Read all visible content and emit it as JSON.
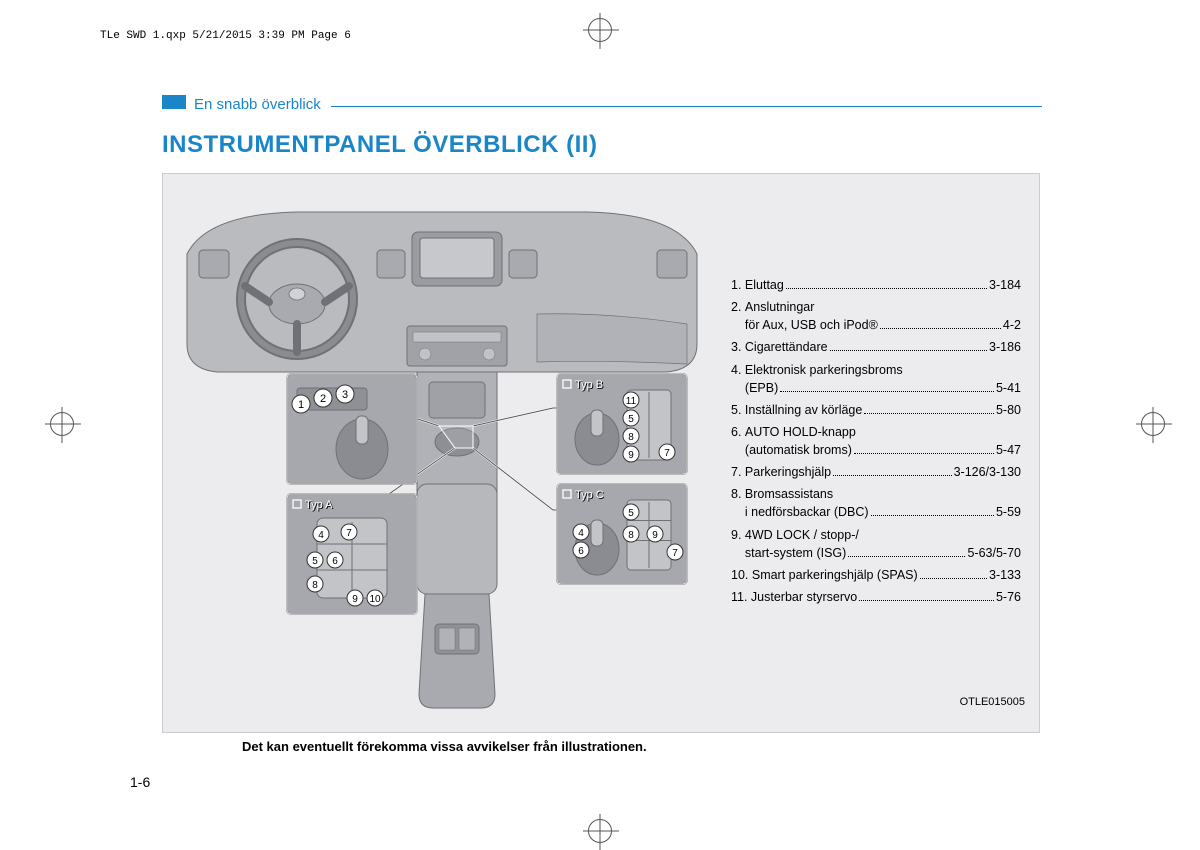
{
  "meta_header": "TLe SWD 1.qxp  5/21/2015  3:39 PM  Page 6",
  "section_label": "En snabb överblick",
  "main_title": "INSTRUMENTPANEL ÖVERBLICK (II)",
  "figure_code": "OTLE015005",
  "caption": "Det kan eventuellt förekomma vissa avvikelser från illustrationen.",
  "page_number": "1-6",
  "callouts": {
    "typA": "Typ A",
    "typB": "Typ B",
    "typC": "Typ C"
  },
  "colors": {
    "accent": "#1a86c8",
    "figure_bg": "#ececee",
    "callout_fill": "#ffffff",
    "callout_stroke": "#333333",
    "dashboard_fill": "#b9bbbf",
    "dashboard_stroke": "#6f7176"
  },
  "index": [
    {
      "n": "1.",
      "lines": [
        {
          "label": "Eluttag",
          "page": "3-184"
        }
      ]
    },
    {
      "n": "2.",
      "lines": [
        {
          "label": "Anslutningar",
          "page": ""
        },
        {
          "label": "för Aux, USB och iPod®",
          "page": "4-2"
        }
      ]
    },
    {
      "n": "3.",
      "lines": [
        {
          "label": "Cigarettändare",
          "page": "3-186"
        }
      ]
    },
    {
      "n": "4.",
      "lines": [
        {
          "label": "Elektronisk parkeringsbroms",
          "page": ""
        },
        {
          "label": "(EPB)",
          "page": "5-41"
        }
      ]
    },
    {
      "n": "5.",
      "lines": [
        {
          "label": "Inställning av körläge",
          "page": "5-80"
        }
      ]
    },
    {
      "n": "6.",
      "lines": [
        {
          "label": "AUTO HOLD-knapp",
          "page": ""
        },
        {
          "label": "(automatisk broms)",
          "page": "5-47"
        }
      ]
    },
    {
      "n": "7.",
      "lines": [
        {
          "label": "Parkeringshjälp",
          "page": "3-126/3-130"
        }
      ]
    },
    {
      "n": "8.",
      "lines": [
        {
          "label": "Bromsassistans",
          "page": ""
        },
        {
          "label": "i nedförsbackar (DBC)",
          "page": "5-59"
        }
      ]
    },
    {
      "n": "9.",
      "lines": [
        {
          "label": "4WD LOCK / stopp-/",
          "page": ""
        },
        {
          "label": "start-system (ISG)",
          "page": "5-63/5-70"
        }
      ]
    },
    {
      "n": "10.",
      "lines": [
        {
          "label": "Smart parkeringshjälp (SPAS)",
          "page": "3-133"
        }
      ]
    },
    {
      "n": "11.",
      "lines": [
        {
          "label": "Justerbar styrservo",
          "page": "5-76"
        }
      ]
    }
  ]
}
